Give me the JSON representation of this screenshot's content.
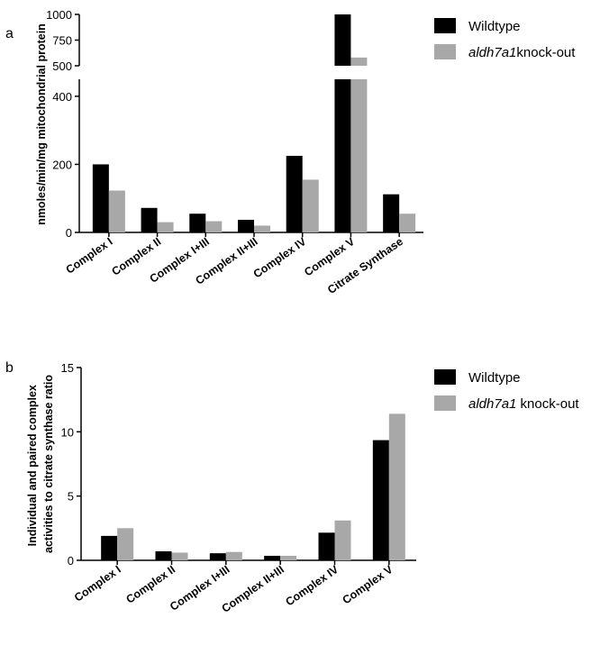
{
  "panels": [
    {
      "letter": "a"
    },
    {
      "letter": "b"
    }
  ],
  "chart_data": [
    {
      "type": "bar",
      "panel": "a",
      "ylabel": "nmoles/min/mg mitochondrial protein",
      "categories": [
        "Complex I",
        "Complex II",
        "Complex I+III",
        "Complex II+III",
        "Complex IV",
        "Complex V",
        "Citrate Synthase"
      ],
      "series": [
        {
          "name": "Wildtype",
          "name_italic": "",
          "name_rest": "Wildtype",
          "color": "#000000",
          "values": [
            200,
            72,
            55,
            37,
            225,
            1000,
            112
          ]
        },
        {
          "name": "aldh7a1knock-out",
          "name_italic": "aldh7a1",
          "name_rest": "knock-out",
          "color": "#a8a8a8",
          "values": [
            123,
            30,
            33,
            20,
            155,
            580,
            55
          ]
        }
      ],
      "axis_break": {
        "lower_range": [
          0,
          450
        ],
        "upper_range": [
          500,
          1000
        ]
      },
      "yticks_lower": [
        "0",
        "200",
        "400"
      ],
      "yticks_upper": [
        "500",
        "750",
        "1000"
      ],
      "legend_position": "top-right"
    },
    {
      "type": "bar",
      "panel": "b",
      "ylabel_line1": "Individual and paired complex",
      "ylabel_line2": "activities to citrate synthase ratio",
      "categories": [
        "Complex I",
        "Complex II",
        "Complex I+III",
        "Complex II+III",
        "Complex IV",
        "Complex V"
      ],
      "series": [
        {
          "name": "Wildtype",
          "name_italic": "",
          "name_rest": "Wildtype",
          "color": "#000000",
          "values": [
            1.9,
            0.7,
            0.55,
            0.35,
            2.15,
            9.35
          ]
        },
        {
          "name": "aldh7a1 knock-out",
          "name_italic": "aldh7a1",
          "name_rest": " knock-out",
          "color": "#a8a8a8",
          "values": [
            2.5,
            0.6,
            0.65,
            0.35,
            3.1,
            11.4
          ]
        }
      ],
      "ylim": [
        0,
        15
      ],
      "yticks": [
        "0",
        "5",
        "10",
        "15"
      ],
      "legend_position": "top-right"
    }
  ]
}
